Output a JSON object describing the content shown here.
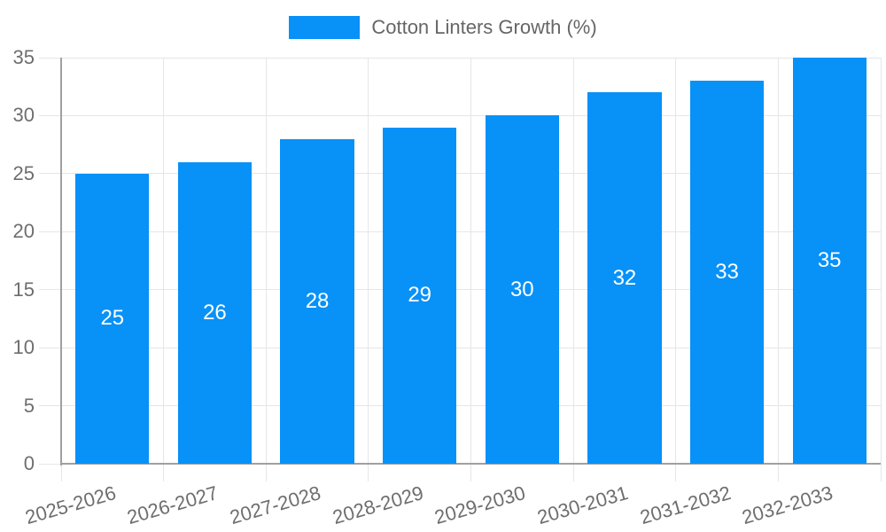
{
  "legend": {
    "label": "Cotton Linters Growth (%)"
  },
  "chart_data": {
    "type": "bar",
    "title": "",
    "xlabel": "",
    "ylabel": "",
    "categories": [
      "2025-2026",
      "2026-2027",
      "2027-2028",
      "2028-2029",
      "2029-2030",
      "2030-2031",
      "2031-2032",
      "2032-2033"
    ],
    "values": [
      25,
      26,
      28,
      29,
      30,
      32,
      33,
      35
    ],
    "series_name": "Cotton Linters Growth (%)",
    "ylim": [
      0,
      35
    ],
    "ytick_step": 5,
    "yticks": [
      0,
      5,
      10,
      15,
      20,
      25,
      30,
      35
    ],
    "grid": true,
    "legend_position": "top-center",
    "value_labels": "inside-center",
    "colors": {
      "bar": "#0891f7",
      "value_text": "#ffffff",
      "axis_text": "#6e6e6e",
      "grid_line": "#e6e6e6",
      "axis_line": "#a0a0a0",
      "background": "#ffffff"
    }
  }
}
